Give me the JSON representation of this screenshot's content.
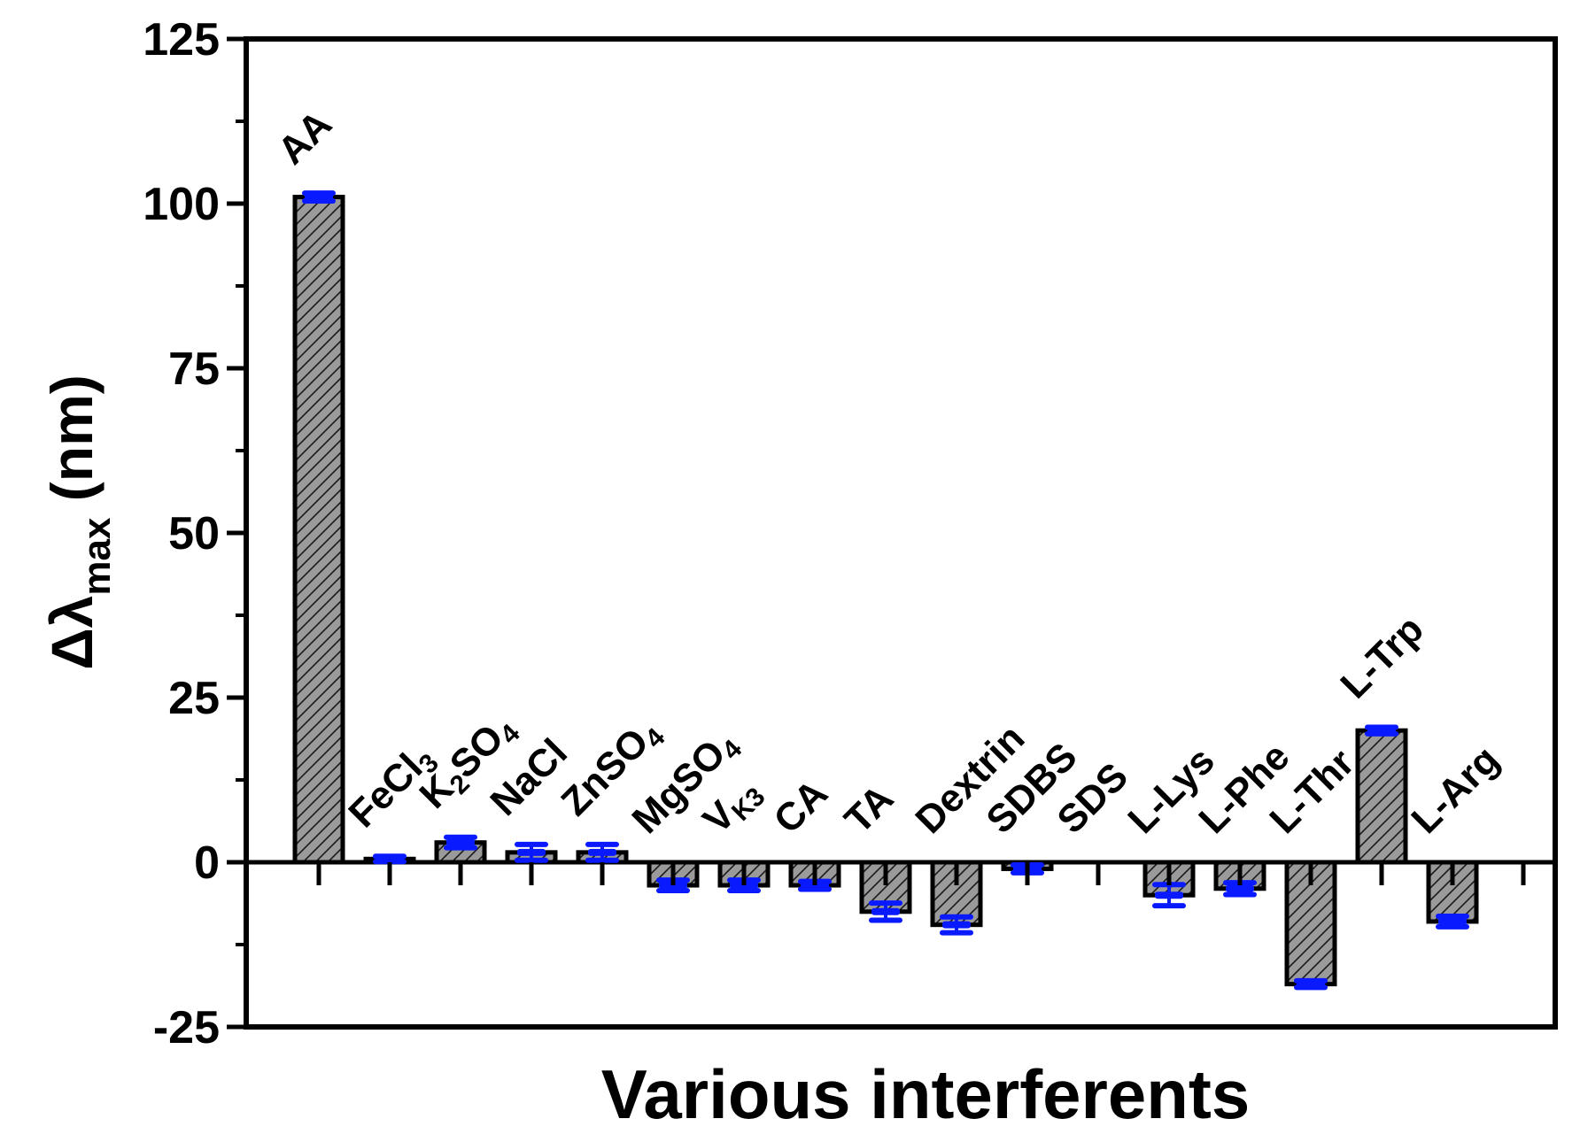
{
  "chart_data": {
    "type": "bar",
    "xlabel": "Various interferents",
    "ylabel": {
      "prefix": "Δλ",
      "subscript": "max",
      "suffix": " (nm)"
    },
    "ylim": [
      -25,
      125
    ],
    "yticks": [
      "125",
      "100",
      "75",
      "50",
      "25",
      "0",
      "-25"
    ],
    "ytick_values": [
      125,
      100,
      75,
      50,
      25,
      0,
      -25
    ],
    "grid": false,
    "bar_color": "#9a9a9a",
    "error_color": "#0a1aff",
    "categories": [
      {
        "label": "AA",
        "sub": ""
      },
      {
        "label": "FeCl",
        "sub": "3"
      },
      {
        "label": "K",
        "sub": "2",
        "label_after": "SO",
        "sub_after": "4"
      },
      {
        "label": "NaCl",
        "sub": ""
      },
      {
        "label": "ZnSO",
        "sub": "4"
      },
      {
        "label": "MgSO",
        "sub": "4"
      },
      {
        "label": "V",
        "sub": "K3"
      },
      {
        "label": "CA",
        "sub": ""
      },
      {
        "label": "TA",
        "sub": ""
      },
      {
        "label": "Dextrin",
        "sub": ""
      },
      {
        "label": "SDBS",
        "sub": ""
      },
      {
        "label": "SDS",
        "sub": ""
      },
      {
        "label": "L-Lys",
        "sub": ""
      },
      {
        "label": "L-Phe",
        "sub": ""
      },
      {
        "label": "L-Thr",
        "sub": ""
      },
      {
        "label": "L-Trp",
        "sub": ""
      },
      {
        "label": "L-Arg",
        "sub": ""
      }
    ],
    "values": [
      101,
      0.5,
      3,
      1.5,
      1.5,
      -3.5,
      -3.5,
      -3.5,
      -7.5,
      -9.5,
      -1,
      0,
      -5,
      -4,
      -18.5,
      20,
      -9
    ],
    "errors": [
      0.6,
      0.4,
      0.8,
      1.2,
      1.2,
      0.8,
      0.8,
      0.6,
      1.3,
      1.2,
      0.6,
      0,
      1.6,
      0.9,
      0.5,
      0.5,
      0.8
    ]
  }
}
